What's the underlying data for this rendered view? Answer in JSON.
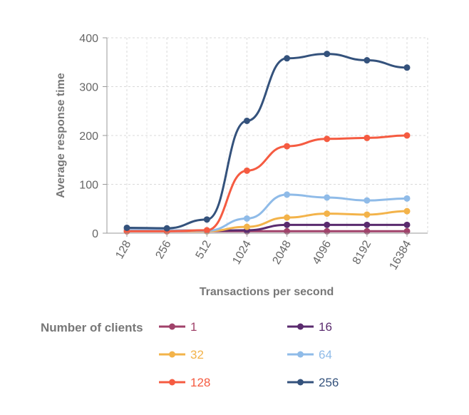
{
  "chart_data": {
    "type": "line",
    "title": "",
    "xlabel": "Transactions per second",
    "ylabel": "Average response time",
    "categories": [
      "128",
      "256",
      "512",
      "1024",
      "2048",
      "4096",
      "8192",
      "16384"
    ],
    "ylim": [
      0,
      400
    ],
    "yticks": [
      "0",
      "100",
      "200",
      "300",
      "400"
    ],
    "grid": true,
    "legend_title": "Number of clients",
    "legend_position": "bottom",
    "series": [
      {
        "name": "1",
        "color": "#a0426a",
        "values": [
          4,
          4,
          4,
          4,
          4,
          4,
          4,
          4
        ]
      },
      {
        "name": "16",
        "color": "#5a2b6e",
        "values": [
          6,
          6,
          5,
          6,
          17,
          17,
          17,
          17
        ]
      },
      {
        "name": "32",
        "color": "#f3b34a",
        "values": [
          5,
          5,
          4,
          13,
          32,
          40,
          38,
          45
        ]
      },
      {
        "name": "64",
        "color": "#8fbbe8",
        "values": [
          6,
          6,
          5,
          30,
          79,
          73,
          67,
          71
        ]
      },
      {
        "name": "128",
        "color": "#f55b41",
        "values": [
          4,
          4,
          6,
          128,
          178,
          193,
          195,
          200
        ]
      },
      {
        "name": "256",
        "color": "#34527c",
        "values": [
          11,
          10,
          28,
          230,
          358,
          367,
          354,
          339
        ]
      }
    ]
  }
}
